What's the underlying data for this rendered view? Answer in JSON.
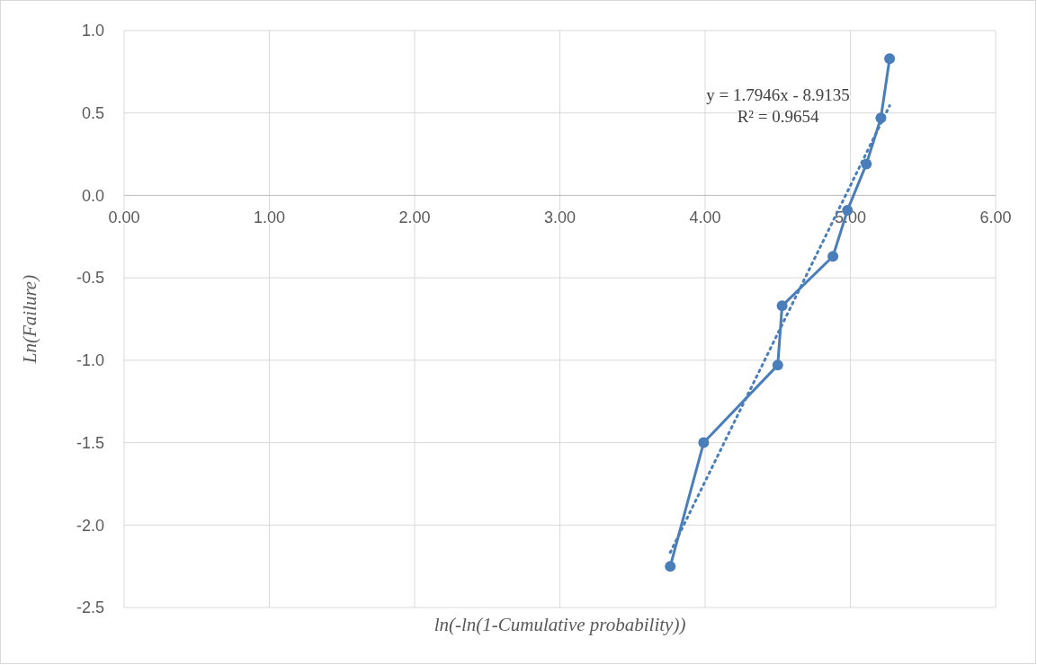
{
  "chart_data": {
    "type": "line",
    "xlabel": "ln(-ln(1-Cumulative probability))",
    "ylabel": "Ln(Failure)",
    "xlim": [
      0,
      6
    ],
    "ylim": [
      -2.5,
      1
    ],
    "xticks": [
      {
        "value": 0,
        "label": "0.00"
      },
      {
        "value": 1,
        "label": "1.00"
      },
      {
        "value": 2,
        "label": "2.00"
      },
      {
        "value": 3,
        "label": "3.00"
      },
      {
        "value": 4,
        "label": "4.00"
      },
      {
        "value": 5,
        "label": "5.00"
      },
      {
        "value": 6,
        "label": "6.00"
      }
    ],
    "yticks": [
      {
        "value": -2.5,
        "label": "-2.5"
      },
      {
        "value": -2,
        "label": "-2.0"
      },
      {
        "value": -1.5,
        "label": "-1.5"
      },
      {
        "value": -1,
        "label": "-1.0"
      },
      {
        "value": -0.5,
        "label": "-0.5"
      },
      {
        "value": 0,
        "label": "0.0"
      },
      {
        "value": 0.5,
        "label": "0.5"
      },
      {
        "value": 1,
        "label": "1.0"
      }
    ],
    "grid": true,
    "marker": "circle",
    "series": [
      {
        "color": "#4a7ebb",
        "line_style": "solid",
        "x": [
          3.76,
          3.99,
          4.5,
          4.53,
          4.88,
          4.98,
          5.11,
          5.21,
          5.27
        ],
        "values": [
          -2.25,
          -1.5,
          -1.03,
          -0.67,
          -0.37,
          -0.09,
          0.19,
          0.47,
          0.83
        ]
      },
      {
        "type": "line",
        "color": "#4a7ebb",
        "marker": "none",
        "line_style": "dotted",
        "x": [
          3.76,
          5.27
        ],
        "values": [
          -2.166,
          0.544
        ]
      }
    ],
    "annotations": [
      "y = 1.7946x - 8.9135",
      "R² = 0.9654"
    ]
  }
}
